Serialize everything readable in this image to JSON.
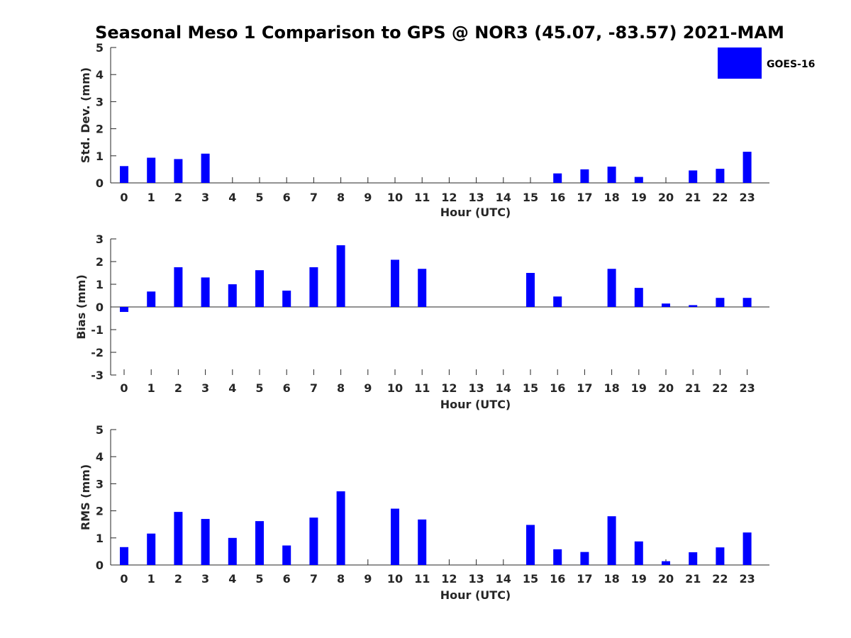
{
  "chart_data": {
    "type": "bar",
    "title": "Seasonal Meso 1 Comparison to GPS @ NOR3 (45.07, -83.57) 2021-MAM",
    "bar_color": "#0000ff",
    "axis_color": "#262626",
    "legend": {
      "label": "GOES-16",
      "placement": "top-right"
    },
    "panels": [
      {
        "name": "std-dev",
        "ylabel": "Std. Dev. (mm)",
        "xlabel": "Hour (UTC)",
        "categories": [
          "0",
          "1",
          "2",
          "3",
          "4",
          "5",
          "6",
          "7",
          "8",
          "9",
          "10",
          "11",
          "12",
          "13",
          "14",
          "15",
          "16",
          "17",
          "18",
          "19",
          "20",
          "21",
          "22",
          "23"
        ],
        "values": [
          0.62,
          0.93,
          0.88,
          1.08,
          0,
          0,
          0,
          0,
          0,
          0,
          0,
          0,
          0,
          0,
          0,
          0,
          0.35,
          0.5,
          0.6,
          0.22,
          0,
          0.46,
          0.52,
          1.15
        ],
        "ylim": [
          0,
          5
        ],
        "yticks": [
          "0",
          "1",
          "2",
          "3",
          "4",
          "5"
        ],
        "ytick_values": [
          0,
          1,
          2,
          3,
          4,
          5
        ]
      },
      {
        "name": "bias",
        "ylabel": "Bias (mm)",
        "xlabel": "Hour (UTC)",
        "categories": [
          "0",
          "1",
          "2",
          "3",
          "4",
          "5",
          "6",
          "7",
          "8",
          "9",
          "10",
          "11",
          "12",
          "13",
          "14",
          "15",
          "16",
          "17",
          "18",
          "19",
          "20",
          "21",
          "22",
          "23"
        ],
        "values": [
          -0.22,
          0.68,
          1.75,
          1.3,
          1.0,
          1.62,
          0.72,
          1.75,
          2.72,
          0,
          2.08,
          1.68,
          0,
          0,
          0,
          1.5,
          0.46,
          0,
          1.68,
          0.84,
          0.15,
          0.08,
          0.4,
          0.4
        ],
        "ylim": [
          -3,
          3
        ],
        "yticks": [
          "-3",
          "-2",
          "-1",
          "0",
          "1",
          "2",
          "3"
        ],
        "ytick_values": [
          -3,
          -2,
          -1,
          0,
          1,
          2,
          3
        ]
      },
      {
        "name": "rms",
        "ylabel": "RMS (mm)",
        "xlabel": "Hour (UTC)",
        "categories": [
          "0",
          "1",
          "2",
          "3",
          "4",
          "5",
          "6",
          "7",
          "8",
          "9",
          "10",
          "11",
          "12",
          "13",
          "14",
          "15",
          "16",
          "17",
          "18",
          "19",
          "20",
          "21",
          "22",
          "23"
        ],
        "values": [
          0.66,
          1.16,
          1.96,
          1.7,
          1.0,
          1.62,
          0.72,
          1.75,
          2.72,
          0,
          2.08,
          1.68,
          0,
          0,
          0,
          1.48,
          0.58,
          0.48,
          1.8,
          0.87,
          0.14,
          0.47,
          0.65,
          1.2
        ],
        "ylim": [
          0,
          5
        ],
        "yticks": [
          "0",
          "1",
          "2",
          "3",
          "4",
          "5"
        ],
        "ytick_values": [
          0,
          1,
          2,
          3,
          4,
          5
        ]
      }
    ]
  }
}
